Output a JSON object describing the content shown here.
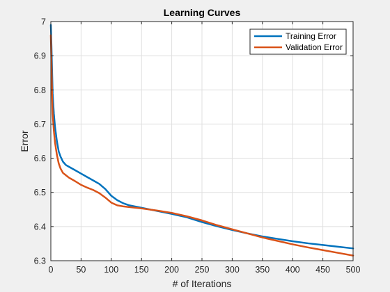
{
  "chart_data": {
    "type": "line",
    "title": "Learning Curves",
    "xlabel": "# of Iterations",
    "ylabel": "Error",
    "xlim": [
      0,
      500
    ],
    "ylim": [
      6.3,
      7.0
    ],
    "grid": true,
    "legend_position": "top-right",
    "x_ticks": [
      0,
      50,
      100,
      150,
      200,
      250,
      300,
      350,
      400,
      450,
      500
    ],
    "y_ticks": [
      6.3,
      6.4,
      6.5,
      6.6,
      6.7,
      6.8,
      6.9,
      7.0
    ],
    "x_tick_labels": [
      "0",
      "50",
      "100",
      "150",
      "200",
      "250",
      "300",
      "350",
      "400",
      "450",
      "500"
    ],
    "y_tick_labels": [
      "6.3",
      "6.4",
      "6.5",
      "6.6",
      "6.7",
      "6.8",
      "6.9",
      "7"
    ],
    "series": [
      {
        "name": "Training Error",
        "color": "#0072BD",
        "x": [
          0,
          1,
          2,
          3,
          5,
          7,
          10,
          13,
          16,
          20,
          25,
          30,
          40,
          50,
          60,
          70,
          80,
          90,
          100,
          110,
          120,
          130,
          150,
          175,
          200,
          225,
          250,
          275,
          300,
          325,
          350,
          375,
          400,
          425,
          450,
          475,
          500
        ],
        "y": [
          6.99,
          6.93,
          6.86,
          6.79,
          6.73,
          6.69,
          6.65,
          6.62,
          6.605,
          6.59,
          6.58,
          6.575,
          6.565,
          6.555,
          6.545,
          6.535,
          6.525,
          6.51,
          6.49,
          6.477,
          6.468,
          6.462,
          6.455,
          6.446,
          6.437,
          6.427,
          6.413,
          6.401,
          6.39,
          6.38,
          6.371,
          6.364,
          6.357,
          6.351,
          6.346,
          6.341,
          6.336
        ]
      },
      {
        "name": "Validation Error",
        "color": "#D95319",
        "x": [
          0,
          1,
          2,
          3,
          5,
          7,
          10,
          13,
          16,
          20,
          25,
          30,
          40,
          50,
          60,
          70,
          80,
          90,
          100,
          110,
          120,
          130,
          150,
          175,
          200,
          225,
          250,
          275,
          300,
          325,
          350,
          375,
          400,
          425,
          450,
          475,
          500
        ],
        "y": [
          6.96,
          6.88,
          6.79,
          6.73,
          6.68,
          6.645,
          6.61,
          6.585,
          6.57,
          6.557,
          6.55,
          6.543,
          6.533,
          6.522,
          6.514,
          6.507,
          6.498,
          6.485,
          6.47,
          6.462,
          6.459,
          6.457,
          6.453,
          6.447,
          6.44,
          6.43,
          6.418,
          6.404,
          6.392,
          6.38,
          6.368,
          6.358,
          6.348,
          6.339,
          6.331,
          6.323,
          6.315
        ]
      }
    ]
  }
}
